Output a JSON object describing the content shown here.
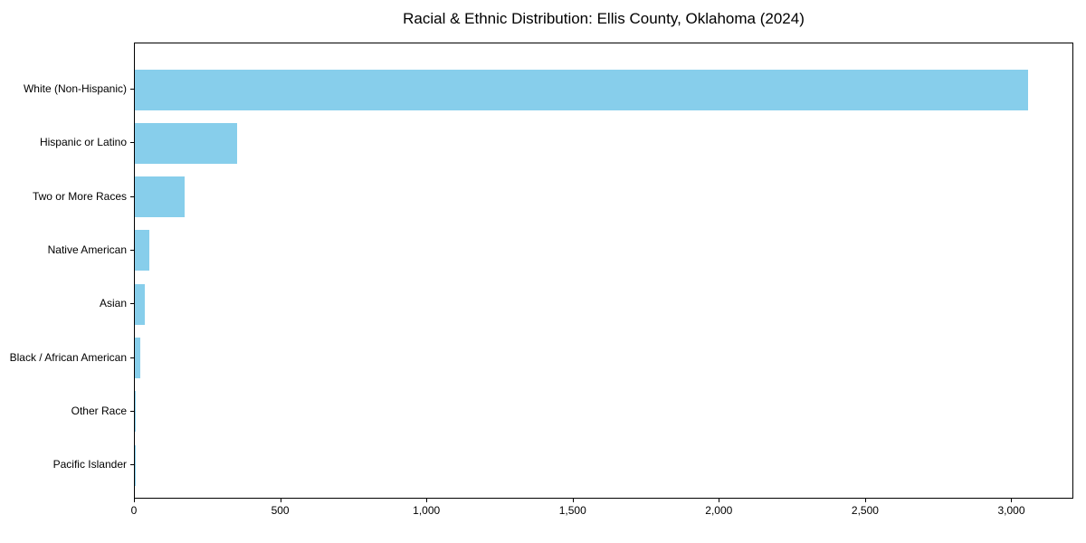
{
  "chart_data": {
    "type": "bar",
    "orientation": "horizontal",
    "title": "Racial & Ethnic Distribution: Ellis County, Oklahoma (2024)",
    "categories": [
      "White (Non-Hispanic)",
      "Hispanic or Latino",
      "Two or More Races",
      "Native American",
      "Asian",
      "Black / African American",
      "Other Race",
      "Pacific Islander"
    ],
    "values": [
      3055,
      350,
      170,
      50,
      35,
      18,
      4,
      1
    ],
    "xlabel": "",
    "ylabel": "",
    "xlim": [
      0,
      3212
    ],
    "xticks": [
      0,
      500,
      1000,
      1500,
      2000,
      2500,
      3000
    ],
    "xtick_labels": [
      "0",
      "500",
      "1,000",
      "1,500",
      "2,000",
      "2,500",
      "3,000"
    ],
    "bar_color": "#87CEEB",
    "text_color": "#000000",
    "background_color": "#ffffff",
    "grid": false,
    "legend": null
  }
}
